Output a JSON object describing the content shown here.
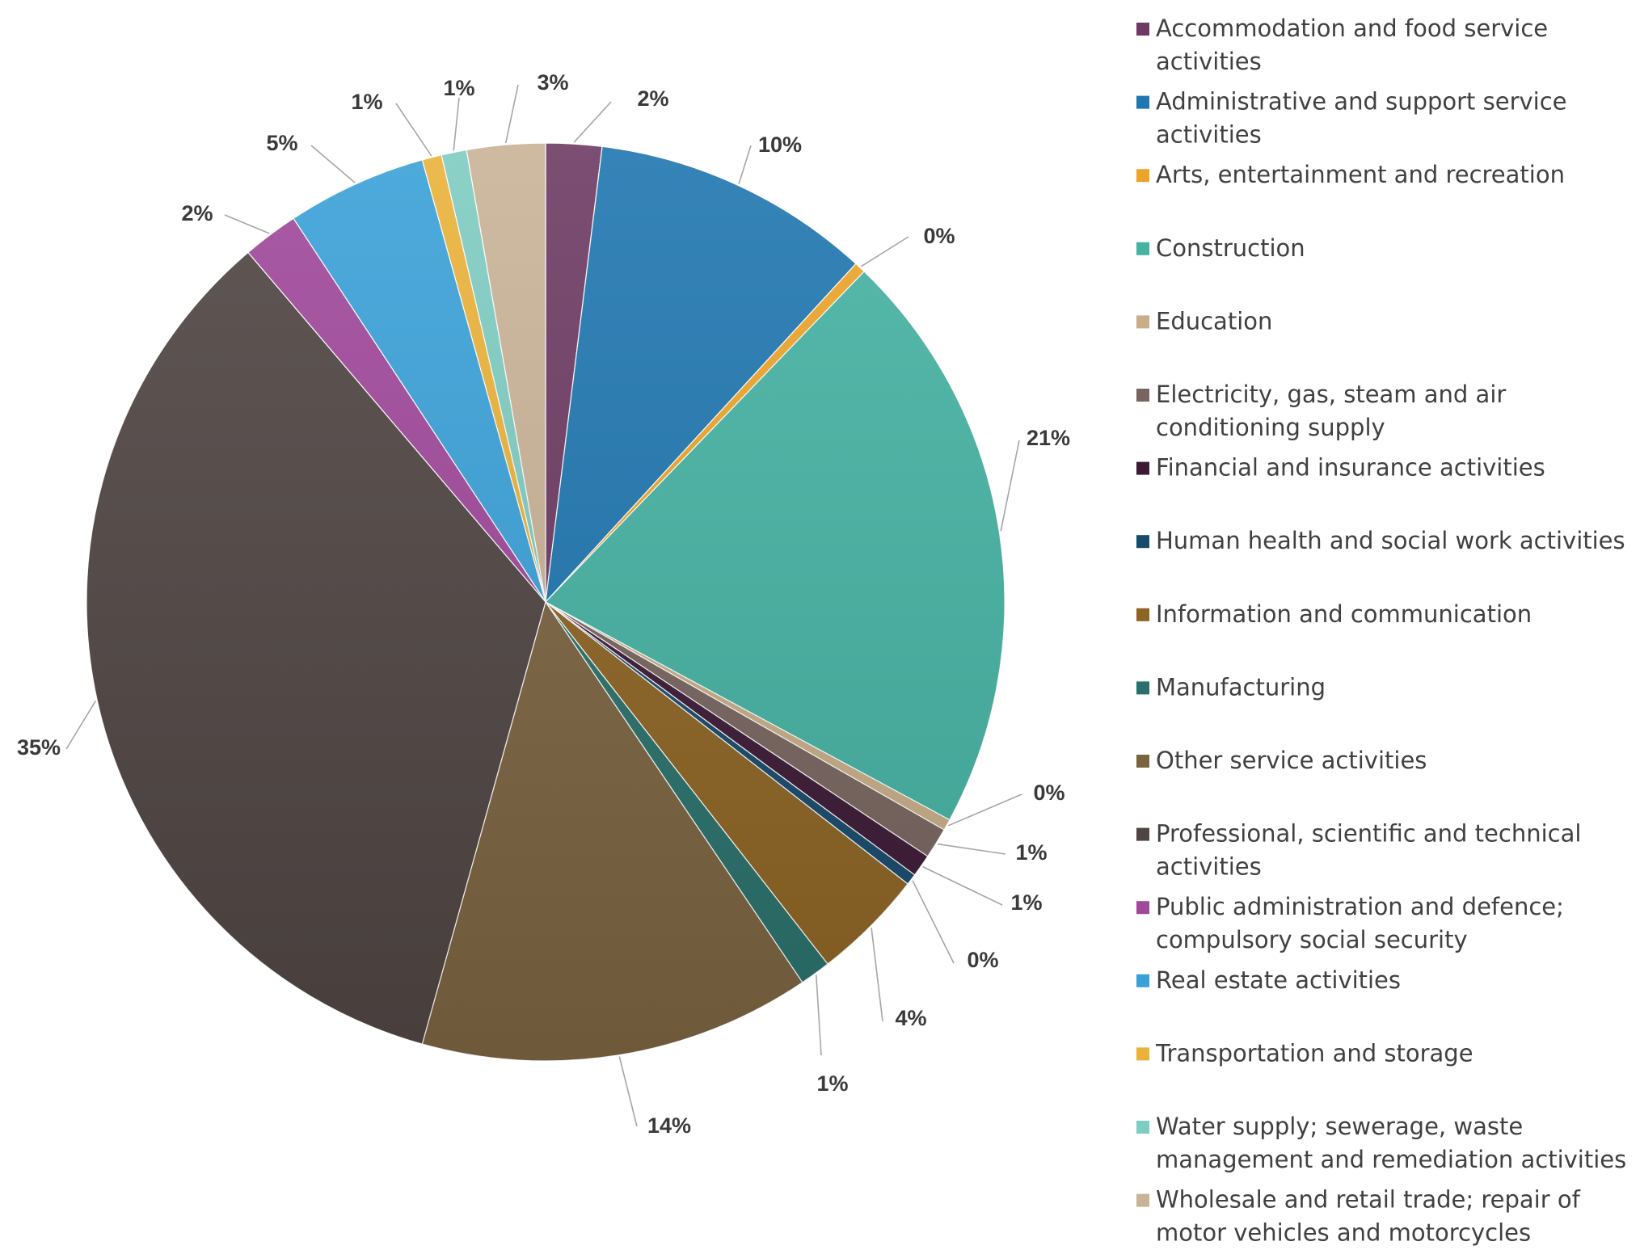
{
  "chart_data": {
    "type": "pie",
    "slices": [
      {
        "name": "Accommodation and food service activities",
        "value": 2,
        "label": "2%",
        "color": "#6e3a63"
      },
      {
        "name": "Administrative and support service activities",
        "value": 10,
        "label": "10%",
        "color": "#1f76b0"
      },
      {
        "name": "Arts, entertainment and recreation",
        "value": 0.4,
        "label": "0%",
        "color": "#eda42a"
      },
      {
        "name": "Construction",
        "value": 21,
        "label": "21%",
        "color": "#45b2a2"
      },
      {
        "name": "Education",
        "value": 0.4,
        "label": "0%",
        "color": "#c8ad88"
      },
      {
        "name": "Electricity, gas, steam and air conditioning supply",
        "value": 1.1,
        "label": "1%",
        "color": "#78645f"
      },
      {
        "name": "Financial and insurance activities",
        "value": 0.8,
        "label": "1%",
        "color": "#3c1a35"
      },
      {
        "name": "Human health and social work activities",
        "value": 0.4,
        "label": "0%",
        "color": "#174a6b"
      },
      {
        "name": "Information and communication",
        "value": 4,
        "label": "4%",
        "color": "#8c6424"
      },
      {
        "name": "Manufacturing",
        "value": 1.1,
        "label": "1%",
        "color": "#2a706a"
      },
      {
        "name": "Other service activities",
        "value": 14,
        "label": "14%",
        "color": "#7a6340"
      },
      {
        "name": "Professional, scientific and technical activities",
        "value": 35,
        "label": "35%",
        "color": "#4f4543"
      },
      {
        "name": "Public administration and defence; compulsory social security",
        "value": 2,
        "label": "2%",
        "color": "#a0489a"
      },
      {
        "name": "Real estate activities",
        "value": 5,
        "label": "5%",
        "color": "#3aa1d8"
      },
      {
        "name": "Transportation and storage",
        "value": 0.7,
        "label": "1%",
        "color": "#eab23a"
      },
      {
        "name": "Water supply; sewerage, waste management and remediation activities",
        "value": 0.9,
        "label": "1%",
        "color": "#7fccc2"
      },
      {
        "name": "Wholesale and retail trade; repair of motor vehicles and motorcycles",
        "value": 2.8,
        "label": "3%",
        "color": "#c9b397"
      }
    ],
    "legend": {
      "position": "right",
      "entries": [
        {
          "lines": [
            "Accommodation and food service",
            "activities"
          ]
        },
        {
          "lines": [
            "Administrative and support service",
            "activities"
          ]
        },
        {
          "lines": [
            "Arts, entertainment and recreation"
          ]
        },
        {
          "lines": [
            "Construction"
          ]
        },
        {
          "lines": [
            "Education"
          ]
        },
        {
          "lines": [
            "Electricity, gas, steam and air",
            "conditioning supply"
          ]
        },
        {
          "lines": [
            "Financial and insurance activities"
          ]
        },
        {
          "lines": [
            "Human health and social work activities"
          ]
        },
        {
          "lines": [
            "Information and communication"
          ]
        },
        {
          "lines": [
            "Manufacturing"
          ]
        },
        {
          "lines": [
            "Other service activities"
          ]
        },
        {
          "lines": [
            "Professional, scientific and technical",
            "activities"
          ]
        },
        {
          "lines": [
            "Public administration and defence;",
            "compulsory social security"
          ]
        },
        {
          "lines": [
            "Real estate activities"
          ]
        },
        {
          "lines": [
            "Transportation and storage"
          ]
        },
        {
          "lines": [
            "Water supply; sewerage, waste",
            "management and remediation activities"
          ]
        },
        {
          "lines": [
            "Wholesale and retail trade; repair of",
            "motor vehicles and motorcycles"
          ]
        }
      ]
    }
  }
}
